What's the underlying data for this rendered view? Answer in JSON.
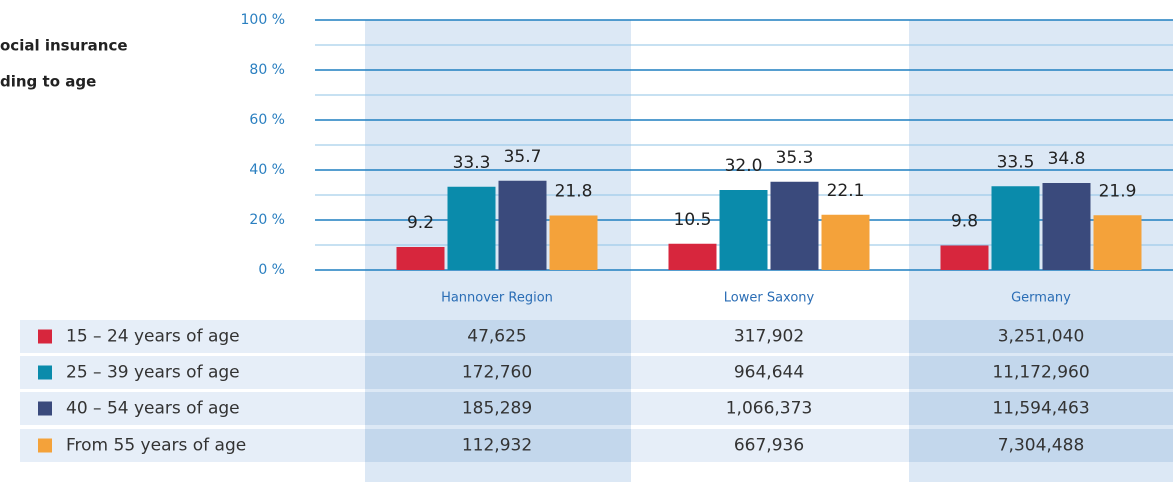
{
  "chart_data": {
    "type": "bar",
    "title": [
      "ocial insurance",
      "ding to age"
    ],
    "categories": [
      "Hannover Region",
      "Lower Saxony",
      "Germany"
    ],
    "series": [
      {
        "name": "15 – 24 years of age",
        "color": "#d7263d",
        "values": [
          9.2,
          10.5,
          9.8
        ]
      },
      {
        "name": "25 – 39 years of age",
        "color": "#0a8bab",
        "values": [
          33.3,
          32.0,
          33.5
        ],
        "value_labels": [
          "33.3",
          "32.0",
          "33.5"
        ]
      },
      {
        "name": "40 – 54 years of age",
        "color": "#3a4a7c",
        "values": [
          35.7,
          35.3,
          34.8
        ]
      },
      {
        "name": "From 55 years of age",
        "color": "#f4a23a",
        "values": [
          21.8,
          22.1,
          21.9
        ]
      }
    ],
    "ylim": [
      0,
      100
    ],
    "yticks": [
      {
        "value": 0,
        "label": "0 %"
      },
      {
        "value": 20,
        "label": "20 %"
      },
      {
        "value": 40,
        "label": "40 %"
      },
      {
        "value": 60,
        "label": "60 %"
      },
      {
        "value": 80,
        "label": "80 %"
      },
      {
        "value": 100,
        "label": "100 %"
      }
    ],
    "grid": true
  },
  "table": {
    "rows": [
      [
        "47,625",
        "317,902",
        "3,251,040"
      ],
      [
        "172,760",
        "964,644",
        "11,172,960"
      ],
      [
        "185,289",
        "1,066,373",
        "11,594,463"
      ],
      [
        "112,932",
        "667,936",
        "7,304,488"
      ]
    ]
  }
}
